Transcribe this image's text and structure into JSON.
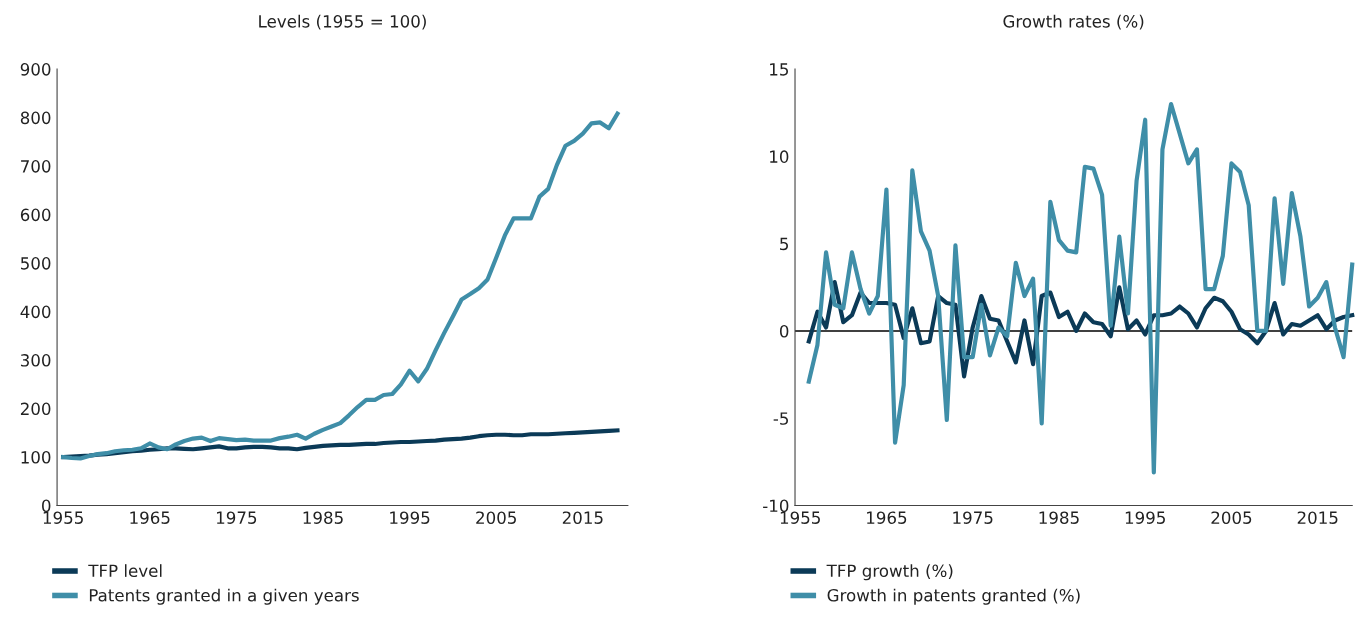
{
  "chart_data": [
    {
      "type": "line",
      "title": "Levels (1955 = 100)",
      "x": [
        1955,
        1956,
        1957,
        1958,
        1959,
        1960,
        1961,
        1962,
        1963,
        1964,
        1965,
        1966,
        1967,
        1968,
        1969,
        1970,
        1971,
        1972,
        1973,
        1974,
        1975,
        1976,
        1977,
        1978,
        1979,
        1980,
        1981,
        1982,
        1983,
        1984,
        1985,
        1986,
        1987,
        1988,
        1989,
        1990,
        1991,
        1992,
        1993,
        1994,
        1995,
        1996,
        1997,
        1998,
        1999,
        2000,
        2001,
        2002,
        2003,
        2004,
        2005,
        2006,
        2007,
        2008,
        2009,
        2010,
        2011,
        2012,
        2013,
        2014,
        2015,
        2016,
        2017,
        2018,
        2019
      ],
      "series": [
        {
          "name": "TFP level",
          "color": "#0b3a57",
          "values": [
            100,
            101,
            102,
            103,
            105,
            106,
            108,
            110,
            112,
            113,
            115,
            116,
            118,
            118,
            117,
            116,
            118,
            120,
            122,
            118,
            118,
            120,
            121,
            121,
            120,
            118,
            118,
            116,
            119,
            121,
            123,
            124,
            125,
            125,
            126,
            127,
            127,
            129,
            130,
            131,
            131,
            132,
            133,
            134,
            136,
            137,
            138,
            140,
            143,
            145,
            146,
            146,
            145,
            145,
            147,
            147,
            147,
            148,
            149,
            150,
            151,
            152,
            153,
            154,
            155
          ]
        },
        {
          "name": "Patents granted in a given years",
          "color": "#3f8ea8",
          "values": [
            100,
            98,
            97,
            102,
            106,
            108,
            112,
            114,
            115,
            118,
            128,
            120,
            116,
            126,
            133,
            138,
            140,
            133,
            139,
            137,
            135,
            136,
            134,
            134,
            134,
            139,
            142,
            146,
            138,
            148,
            156,
            163,
            170,
            186,
            203,
            218,
            218,
            228,
            230,
            250,
            278,
            256,
            282,
            320,
            356,
            390,
            425,
            436,
            448,
            466,
            511,
            557,
            592,
            592,
            592,
            637,
            653,
            702,
            742,
            752,
            767,
            788,
            790,
            778,
            808
          ]
        }
      ],
      "xlim": [
        1954.3,
        2020.2
      ],
      "xticks": [
        1955,
        1965,
        1975,
        1985,
        1995,
        2005,
        2015
      ],
      "ylim": [
        0,
        900
      ],
      "yticks": [
        0,
        100,
        200,
        300,
        400,
        500,
        600,
        700,
        800,
        900
      ],
      "grid": false,
      "legend": "bottom left",
      "marker": "none",
      "line_style": "solid"
    },
    {
      "type": "line",
      "title": "Growth rates (%)",
      "x": [
        1956,
        1957,
        1958,
        1959,
        1960,
        1961,
        1962,
        1963,
        1964,
        1965,
        1966,
        1967,
        1968,
        1969,
        1970,
        1971,
        1972,
        1973,
        1974,
        1975,
        1976,
        1977,
        1978,
        1979,
        1980,
        1981,
        1982,
        1983,
        1984,
        1985,
        1986,
        1987,
        1988,
        1989,
        1990,
        1991,
        1992,
        1993,
        1994,
        1995,
        1996,
        1997,
        1998,
        1999,
        2000,
        2001,
        2002,
        2003,
        2004,
        2005,
        2006,
        2007,
        2008,
        2009,
        2010,
        2011,
        2012,
        2013,
        2014,
        2015,
        2016,
        2017,
        2018,
        2019
      ],
      "series": [
        {
          "name": "TFP growth (%)",
          "color": "#0b3a57",
          "values": [
            -0.6,
            1.1,
            0.2,
            2.8,
            0.5,
            0.9,
            2.2,
            1.6,
            1.6,
            1.6,
            1.5,
            -0.4,
            1.3,
            -0.7,
            -0.6,
            2.0,
            1.6,
            1.5,
            -2.6,
            0.2,
            2.0,
            0.7,
            0.6,
            -0.6,
            -1.8,
            0.6,
            -1.9,
            2.0,
            2.2,
            0.8,
            1.1,
            0.0,
            1.0,
            0.5,
            0.4,
            -0.3,
            2.5,
            0.1,
            0.6,
            -0.2,
            0.9,
            0.9,
            1.0,
            1.4,
            1.0,
            0.2,
            1.3,
            1.9,
            1.7,
            1.1,
            0.1,
            -0.2,
            -0.7,
            0.0,
            1.6,
            -0.2,
            0.4,
            0.3,
            0.6,
            0.9,
            0.1,
            0.6,
            0.8,
            0.9
          ]
        },
        {
          "name": "Growth in patents granted (%)",
          "color": "#3f8ea8",
          "values": [
            -2.9,
            -0.8,
            4.5,
            1.5,
            1.3,
            4.5,
            2.4,
            1.0,
            2.0,
            8.1,
            -6.4,
            -3.1,
            9.2,
            5.7,
            4.6,
            2.0,
            -5.1,
            4.9,
            -1.5,
            -1.5,
            1.5,
            -1.4,
            0.2,
            -0.3,
            3.9,
            2.0,
            3.0,
            -5.3,
            7.4,
            5.2,
            4.6,
            4.5,
            9.4,
            9.3,
            7.8,
            0.3,
            5.4,
            1.0,
            8.6,
            12.1,
            -8.1,
            10.4,
            13.0,
            11.3,
            9.6,
            10.4,
            2.4,
            2.4,
            4.3,
            9.6,
            9.1,
            7.2,
            0.0,
            0.0,
            7.6,
            2.7,
            7.9,
            5.4,
            1.4,
            1.9,
            2.8,
            0.2,
            -1.5,
            3.8
          ]
        }
      ],
      "xlim": [
        1954.4,
        2019
      ],
      "xticks": [
        1955,
        1965,
        1975,
        1985,
        1995,
        2005,
        2015
      ],
      "ylim": [
        -10,
        15
      ],
      "yticks": [
        {
          "value": -10,
          "label": "-10"
        },
        {
          "value": -5,
          "label": "-5"
        },
        0,
        5,
        10,
        15
      ],
      "ref_lines": [
        {
          "axis": "y",
          "value": 0,
          "color": "#000000",
          "line_style": "solid"
        }
      ],
      "grid": false,
      "legend": "bottom left",
      "marker": "none",
      "line_style": "solid"
    }
  ]
}
